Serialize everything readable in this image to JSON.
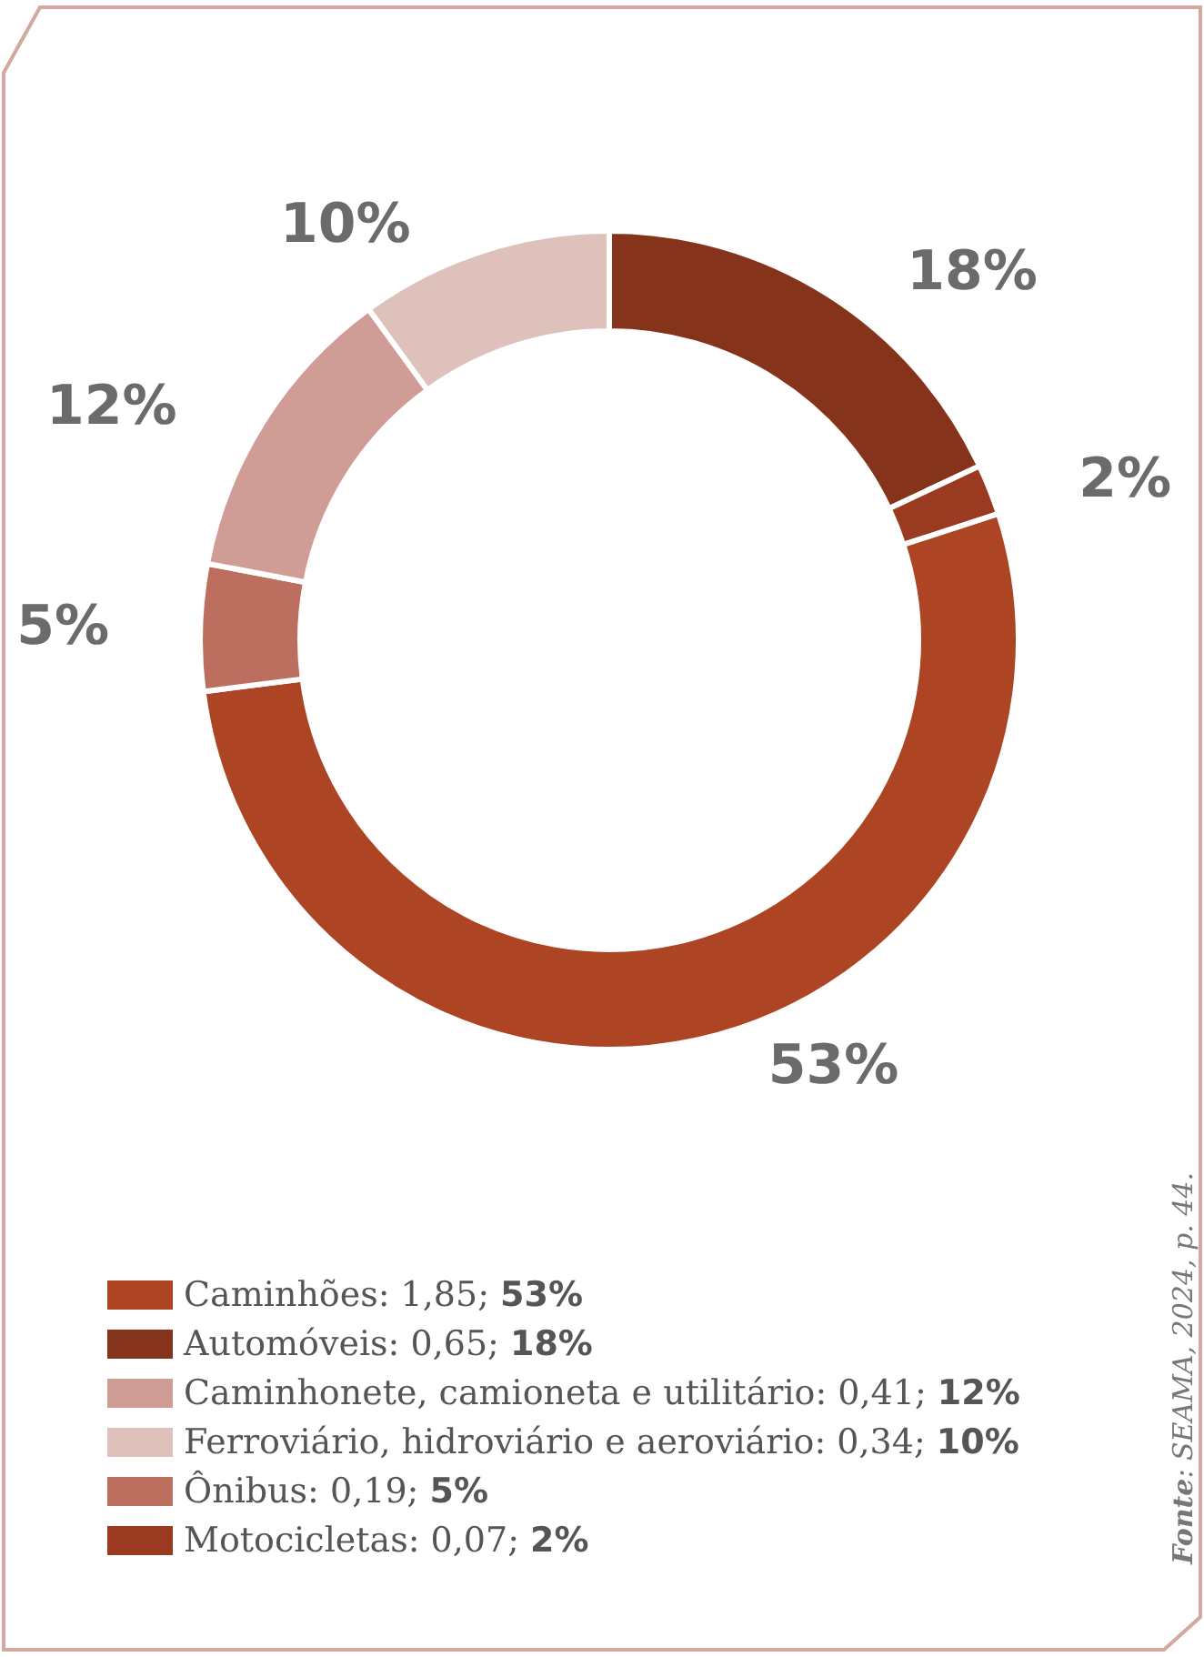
{
  "chart_data": {
    "type": "donut",
    "categories": [
      "Automóveis: 0,65; 18%",
      "Motocicletas: 0,07; 2%",
      "Caminhões: 1,85; 53%",
      "Ônibus: 0,19; 5%",
      "Caminhonete, camioneta e utilitário: 0,41; 12%",
      "Ferroviário, hidroviário e aeroviário: 0,34; 10%"
    ],
    "values": [
      18,
      2,
      53,
      5,
      12,
      10
    ],
    "value_labels": [
      "18%",
      "2%",
      "53%",
      "5%",
      "12%",
      "10%"
    ],
    "colors": [
      "#85331b",
      "#9a3a20",
      "#ad4525",
      "#bd6f5f",
      "#cf9d95",
      "#dfc1bc"
    ],
    "legend": "bottom left",
    "annotations": [
      "Fonte: SEAMA, 2024, p. 44."
    ]
  }
}
